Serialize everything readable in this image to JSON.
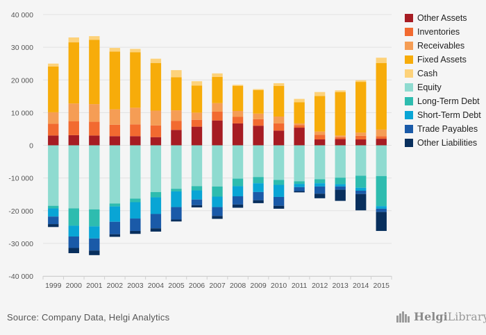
{
  "chart_data": {
    "type": "bar",
    "stacked": true,
    "categories": [
      "1999",
      "2000",
      "2001",
      "2002",
      "2003",
      "2004",
      "2005",
      "2006",
      "2007",
      "2008",
      "2009",
      "2010",
      "2011",
      "2012",
      "2013",
      "2014",
      "2015"
    ],
    "ylim": [
      -40000,
      40000
    ],
    "yticks": [
      -40000,
      -30000,
      -20000,
      -10000,
      0,
      10000,
      20000,
      30000,
      40000
    ],
    "ytick_labels": [
      "-40 000",
      "-30 000",
      "-20 000",
      "-10 000",
      "0",
      "10 000",
      "20 000",
      "30 000",
      "40 000"
    ],
    "grid": true,
    "legend_position": "right",
    "series": [
      {
        "name": "Other Assets",
        "color": "#a61c23",
        "values": [
          3000,
          3100,
          3000,
          2800,
          2800,
          2500,
          4700,
          5700,
          7600,
          6700,
          6000,
          4500,
          5400,
          1800,
          1900,
          1800,
          2000
        ]
      },
      {
        "name": "Inventories",
        "color": "#f26a30",
        "values": [
          3600,
          4300,
          4200,
          3500,
          3600,
          3600,
          2800,
          2100,
          2700,
          2000,
          2000,
          2200,
          800,
          1400,
          600,
          1100,
          800
        ]
      },
      {
        "name": "Receivables",
        "color": "#f59d55",
        "values": [
          3500,
          5400,
          5400,
          4700,
          5100,
          4500,
          3200,
          2200,
          2600,
          1800,
          1700,
          2100,
          500,
          1000,
          500,
          1000,
          2000
        ]
      },
      {
        "name": "Fixed Assets",
        "color": "#f7ac0a",
        "values": [
          14000,
          18700,
          19700,
          17700,
          17000,
          14600,
          10100,
          8300,
          8000,
          7700,
          7200,
          9400,
          6500,
          10900,
          13300,
          15500,
          20400
        ]
      },
      {
        "name": "Cash",
        "color": "#fdd27a",
        "values": [
          900,
          1500,
          1100,
          1100,
          1000,
          1300,
          2200,
          1300,
          1100,
          300,
          300,
          800,
          1000,
          1200,
          500,
          500,
          1600
        ]
      },
      {
        "name": "Equity",
        "color": "#8fdbd0",
        "values": [
          -18500,
          -19300,
          -19600,
          -17800,
          -16300,
          -14300,
          -13300,
          -12500,
          -12600,
          -10200,
          -9700,
          -10600,
          -11000,
          -10400,
          -9900,
          -9300,
          -9400
        ]
      },
      {
        "name": "Long-Term Debt",
        "color": "#2ebcaf",
        "values": [
          -800,
          -5300,
          -5200,
          -900,
          -1100,
          -1600,
          -800,
          -1300,
          -3100,
          -2300,
          -1900,
          -1500,
          -800,
          -1200,
          -2000,
          -3700,
          -9200
        ]
      },
      {
        "name": "Short-Term Debt",
        "color": "#09a5d5",
        "values": [
          -2500,
          -3300,
          -3700,
          -4700,
          -5000,
          -5100,
          -4800,
          -2800,
          -3200,
          -3100,
          -2700,
          -3700,
          -1000,
          -1000,
          -700,
          -900,
          -800
        ]
      },
      {
        "name": "Trade Payables",
        "color": "#1a5aa8",
        "values": [
          -2300,
          -3500,
          -3700,
          -3800,
          -3800,
          -4400,
          -3800,
          -1700,
          -2700,
          -2500,
          -2500,
          -2700,
          -1200,
          -2200,
          -1000,
          -1000,
          -1000
        ]
      },
      {
        "name": "Other Liabilities",
        "color": "#082f5d",
        "values": [
          -900,
          -1600,
          -1400,
          -800,
          -900,
          -1000,
          -600,
          -700,
          -900,
          -1000,
          -900,
          -900,
          -400,
          -1400,
          -3400,
          -5000,
          -5800
        ]
      }
    ]
  },
  "footer": {
    "source": "Source: Company Data, Helgi Analytics",
    "brand_prefix": "Helgi",
    "brand_suffix": "Library."
  }
}
